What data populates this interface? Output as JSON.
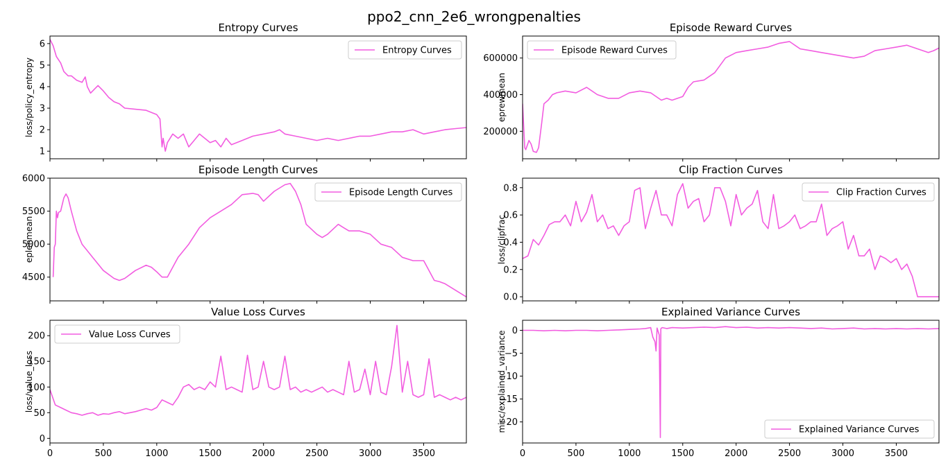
{
  "figure": {
    "suptitle": "ppo2_cnn_2e6_wrongpenalties",
    "line_color": "#f25ce0"
  },
  "chart_data": [
    {
      "type": "line",
      "title": "Entropy Curves",
      "xlabel": "",
      "ylabel": "loss/policy_entropy",
      "xlim": [
        0,
        3900
      ],
      "ylim": [
        0.65,
        6.35
      ],
      "xticks": [
        0,
        500,
        1000,
        1500,
        2000,
        2500,
        3000,
        3500
      ],
      "show_xticklabels": false,
      "yticks": [
        1,
        2,
        3,
        4,
        5,
        6
      ],
      "ytick_labels": [
        "1",
        "2",
        "3",
        "4",
        "5",
        "6"
      ],
      "legend": "top-right",
      "series": [
        {
          "name": "Entropy Curves",
          "x": [
            0,
            30,
            60,
            100,
            130,
            170,
            200,
            250,
            300,
            330,
            350,
            380,
            420,
            450,
            500,
            550,
            600,
            650,
            700,
            800,
            900,
            950,
            1000,
            1030,
            1050,
            1060,
            1080,
            1100,
            1150,
            1200,
            1250,
            1300,
            1350,
            1400,
            1450,
            1500,
            1550,
            1600,
            1650,
            1700,
            1800,
            1900,
            2000,
            2100,
            2150,
            2200,
            2300,
            2400,
            2500,
            2600,
            2700,
            2800,
            2900,
            3000,
            3100,
            3200,
            3300,
            3400,
            3500,
            3600,
            3700,
            3800,
            3900
          ],
          "y": [
            6.2,
            5.9,
            5.4,
            5.1,
            4.7,
            4.5,
            4.5,
            4.3,
            4.2,
            4.45,
            4.0,
            3.7,
            3.9,
            4.05,
            3.8,
            3.5,
            3.3,
            3.2,
            3.0,
            2.95,
            2.9,
            2.8,
            2.7,
            2.5,
            1.2,
            1.6,
            1.0,
            1.4,
            1.8,
            1.6,
            1.8,
            1.2,
            1.5,
            1.8,
            1.6,
            1.4,
            1.5,
            1.2,
            1.6,
            1.3,
            1.5,
            1.7,
            1.8,
            1.9,
            2.0,
            1.8,
            1.7,
            1.6,
            1.5,
            1.6,
            1.5,
            1.6,
            1.7,
            1.7,
            1.8,
            1.9,
            1.9,
            2.0,
            1.8,
            1.9,
            2.0,
            2.05,
            2.1
          ]
        }
      ]
    },
    {
      "type": "line",
      "title": "Episode Reward Curves",
      "xlabel": "",
      "ylabel": "eprewmean",
      "xlim": [
        0,
        3900
      ],
      "ylim": [
        50000,
        720000
      ],
      "xticks": [
        0,
        500,
        1000,
        1500,
        2000,
        2500,
        3000,
        3500
      ],
      "show_xticklabels": false,
      "yticks": [
        200000,
        400000,
        600000
      ],
      "ytick_labels": [
        "200000",
        "400000",
        "600000"
      ],
      "legend": "top-left",
      "series": [
        {
          "name": "Episode Reward Curves",
          "x": [
            0,
            20,
            30,
            60,
            80,
            100,
            130,
            150,
            180,
            200,
            240,
            280,
            320,
            400,
            500,
            600,
            700,
            800,
            900,
            1000,
            1100,
            1200,
            1300,
            1350,
            1400,
            1500,
            1550,
            1600,
            1700,
            1800,
            1900,
            2000,
            2100,
            2200,
            2300,
            2400,
            2500,
            2600,
            2700,
            2800,
            2900,
            3000,
            3100,
            3200,
            3300,
            3400,
            3500,
            3600,
            3700,
            3800,
            3850,
            3900
          ],
          "y": [
            350000,
            110000,
            100000,
            150000,
            130000,
            90000,
            85000,
            110000,
            250000,
            350000,
            370000,
            400000,
            410000,
            420000,
            410000,
            440000,
            400000,
            380000,
            380000,
            410000,
            420000,
            410000,
            370000,
            380000,
            370000,
            390000,
            440000,
            470000,
            480000,
            520000,
            600000,
            630000,
            640000,
            650000,
            660000,
            680000,
            690000,
            650000,
            640000,
            630000,
            620000,
            610000,
            600000,
            610000,
            640000,
            650000,
            660000,
            670000,
            650000,
            630000,
            640000,
            655000
          ]
        }
      ]
    },
    {
      "type": "line",
      "title": "Episode Length Curves",
      "xlabel": "",
      "ylabel": "eplenmean",
      "xlim": [
        0,
        3900
      ],
      "ylim": [
        4140,
        6000
      ],
      "xticks": [
        0,
        500,
        1000,
        1500,
        2000,
        2500,
        3000,
        3500
      ],
      "show_xticklabels": false,
      "yticks": [
        4500,
        5000,
        5500,
        6000
      ],
      "ytick_labels": [
        "4500",
        "5000",
        "5500",
        "6000"
      ],
      "legend": "top-right",
      "series": [
        {
          "name": "Episode Length Curves",
          "x": [
            30,
            40,
            50,
            60,
            70,
            80,
            100,
            130,
            150,
            170,
            200,
            250,
            300,
            400,
            500,
            600,
            650,
            700,
            800,
            900,
            950,
            1000,
            1050,
            1100,
            1150,
            1200,
            1300,
            1400,
            1500,
            1600,
            1700,
            1800,
            1900,
            1950,
            2000,
            2100,
            2200,
            2250,
            2300,
            2350,
            2400,
            2500,
            2550,
            2600,
            2700,
            2750,
            2800,
            2900,
            3000,
            3100,
            3200,
            3300,
            3400,
            3500,
            3600,
            3650,
            3700,
            3800,
            3900
          ],
          "y": [
            4500,
            4950,
            5000,
            5500,
            5400,
            5480,
            5500,
            5700,
            5760,
            5700,
            5500,
            5200,
            5000,
            4800,
            4600,
            4480,
            4450,
            4480,
            4600,
            4680,
            4650,
            4580,
            4500,
            4500,
            4650,
            4800,
            5000,
            5250,
            5400,
            5500,
            5600,
            5750,
            5770,
            5750,
            5650,
            5800,
            5900,
            5920,
            5800,
            5600,
            5300,
            5150,
            5100,
            5150,
            5300,
            5250,
            5200,
            5200,
            5150,
            5000,
            4950,
            4800,
            4750,
            4750,
            4450,
            4430,
            4400,
            4300,
            4200
          ]
        }
      ]
    },
    {
      "type": "line",
      "title": "Clip Fraction Curves",
      "xlabel": "",
      "ylabel": "loss/clipfrac",
      "xlim": [
        0,
        3900
      ],
      "ylim": [
        -0.03,
        0.87
      ],
      "xticks": [
        0,
        500,
        1000,
        1500,
        2000,
        2500,
        3000,
        3500
      ],
      "show_xticklabels": false,
      "yticks": [
        0.0,
        0.2,
        0.4,
        0.6,
        0.8
      ],
      "ytick_labels": [
        "0.0",
        "0.2",
        "0.4",
        "0.6",
        "0.8"
      ],
      "legend": "top-right",
      "series": [
        {
          "name": "Clip Fraction Curves",
          "x": [
            0,
            50,
            100,
            150,
            200,
            250,
            300,
            350,
            400,
            450,
            500,
            550,
            600,
            650,
            700,
            750,
            800,
            850,
            900,
            950,
            1000,
            1050,
            1100,
            1150,
            1200,
            1250,
            1300,
            1350,
            1400,
            1450,
            1500,
            1550,
            1600,
            1650,
            1700,
            1750,
            1800,
            1850,
            1900,
            1950,
            2000,
            2050,
            2100,
            2150,
            2200,
            2250,
            2300,
            2350,
            2400,
            2450,
            2500,
            2550,
            2600,
            2650,
            2700,
            2750,
            2800,
            2850,
            2900,
            2950,
            3000,
            3050,
            3100,
            3150,
            3200,
            3250,
            3300,
            3350,
            3400,
            3450,
            3500,
            3550,
            3600,
            3650,
            3700,
            3800,
            3900
          ],
          "y": [
            0.28,
            0.3,
            0.42,
            0.38,
            0.45,
            0.53,
            0.55,
            0.55,
            0.6,
            0.52,
            0.7,
            0.55,
            0.62,
            0.75,
            0.55,
            0.6,
            0.5,
            0.52,
            0.45,
            0.52,
            0.55,
            0.78,
            0.8,
            0.5,
            0.65,
            0.78,
            0.6,
            0.6,
            0.52,
            0.75,
            0.83,
            0.65,
            0.7,
            0.72,
            0.55,
            0.6,
            0.8,
            0.8,
            0.7,
            0.52,
            0.75,
            0.6,
            0.65,
            0.68,
            0.78,
            0.55,
            0.5,
            0.75,
            0.5,
            0.52,
            0.55,
            0.6,
            0.5,
            0.52,
            0.55,
            0.55,
            0.68,
            0.45,
            0.5,
            0.52,
            0.55,
            0.35,
            0.45,
            0.3,
            0.3,
            0.35,
            0.2,
            0.3,
            0.28,
            0.25,
            0.28,
            0.2,
            0.24,
            0.15,
            0.0,
            0.0,
            0.0
          ]
        }
      ]
    },
    {
      "type": "line",
      "title": "Value Loss Curves",
      "xlabel": "",
      "ylabel": "loss/value_loss",
      "xlim": [
        0,
        3900
      ],
      "ylim": [
        -9,
        230
      ],
      "xticks": [
        0,
        500,
        1000,
        1500,
        2000,
        2500,
        3000,
        3500
      ],
      "show_xticklabels": true,
      "xtick_labels": [
        "0",
        "500",
        "1000",
        "1500",
        "2000",
        "2500",
        "3000",
        "3500"
      ],
      "yticks": [
        0,
        50,
        100,
        150,
        200
      ],
      "ytick_labels": [
        "0",
        "50",
        "100",
        "150",
        "200"
      ],
      "legend": "top-left",
      "series": [
        {
          "name": "Value Loss Curves",
          "x": [
            0,
            50,
            100,
            150,
            200,
            250,
            300,
            350,
            400,
            450,
            500,
            550,
            600,
            650,
            700,
            750,
            800,
            850,
            900,
            950,
            1000,
            1050,
            1100,
            1150,
            1200,
            1250,
            1300,
            1350,
            1400,
            1450,
            1500,
            1550,
            1600,
            1650,
            1700,
            1750,
            1800,
            1850,
            1900,
            1950,
            2000,
            2050,
            2100,
            2150,
            2200,
            2250,
            2300,
            2350,
            2400,
            2450,
            2500,
            2550,
            2600,
            2650,
            2700,
            2750,
            2800,
            2850,
            2900,
            2950,
            3000,
            3050,
            3100,
            3150,
            3200,
            3250,
            3300,
            3350,
            3400,
            3450,
            3500,
            3550,
            3600,
            3650,
            3700,
            3750,
            3800,
            3850,
            3900
          ],
          "y": [
            95,
            65,
            60,
            55,
            50,
            48,
            45,
            48,
            50,
            45,
            48,
            47,
            50,
            52,
            48,
            50,
            52,
            55,
            58,
            55,
            60,
            75,
            70,
            65,
            80,
            100,
            105,
            95,
            100,
            95,
            110,
            100,
            160,
            95,
            100,
            95,
            90,
            162,
            95,
            100,
            150,
            100,
            95,
            100,
            160,
            95,
            100,
            90,
            95,
            90,
            95,
            100,
            90,
            95,
            90,
            85,
            150,
            90,
            95,
            135,
            85,
            150,
            90,
            85,
            140,
            220,
            90,
            150,
            85,
            80,
            85,
            155,
            80,
            85,
            80,
            75,
            80,
            75,
            80
          ]
        }
      ]
    },
    {
      "type": "line",
      "title": "Explained Variance Curves",
      "xlabel": "",
      "ylabel": "misc/explained_variance",
      "xlim": [
        0,
        3900
      ],
      "ylim": [
        -24.6,
        2.2
      ],
      "xticks": [
        0,
        500,
        1000,
        1500,
        2000,
        2500,
        3000,
        3500
      ],
      "show_xticklabels": true,
      "xtick_labels": [
        "0",
        "500",
        "1000",
        "1500",
        "2000",
        "2500",
        "3000",
        "3500"
      ],
      "yticks": [
        0,
        -5,
        -10,
        -15,
        -20
      ],
      "ytick_labels": [
        "0",
        "−5",
        "−10",
        "−15",
        "−20"
      ],
      "legend": "bottom-right",
      "series": [
        {
          "name": "Explained Variance Curves",
          "x": [
            0,
            100,
            200,
            300,
            400,
            500,
            600,
            700,
            800,
            900,
            1000,
            1100,
            1150,
            1200,
            1220,
            1240,
            1250,
            1260,
            1280,
            1290,
            1295,
            1300,
            1310,
            1350,
            1400,
            1500,
            1600,
            1700,
            1800,
            1900,
            2000,
            2100,
            2200,
            2300,
            2400,
            2500,
            2600,
            2700,
            2800,
            2900,
            3000,
            3100,
            3200,
            3300,
            3400,
            3500,
            3600,
            3700,
            3800,
            3900
          ],
          "y": [
            0.0,
            0.0,
            -0.1,
            0.0,
            -0.1,
            0.0,
            0.0,
            -0.1,
            0.0,
            0.1,
            0.2,
            0.3,
            0.4,
            0.6,
            -1.5,
            -2.5,
            -4.5,
            0.5,
            -1.0,
            -23.4,
            0.3,
            0.5,
            0.6,
            0.4,
            0.6,
            0.5,
            0.6,
            0.7,
            0.6,
            0.8,
            0.6,
            0.7,
            0.5,
            0.6,
            0.5,
            0.6,
            0.5,
            0.4,
            0.5,
            0.3,
            0.4,
            0.5,
            0.3,
            0.4,
            0.3,
            0.4,
            0.3,
            0.4,
            0.3,
            0.4
          ]
        }
      ]
    }
  ]
}
